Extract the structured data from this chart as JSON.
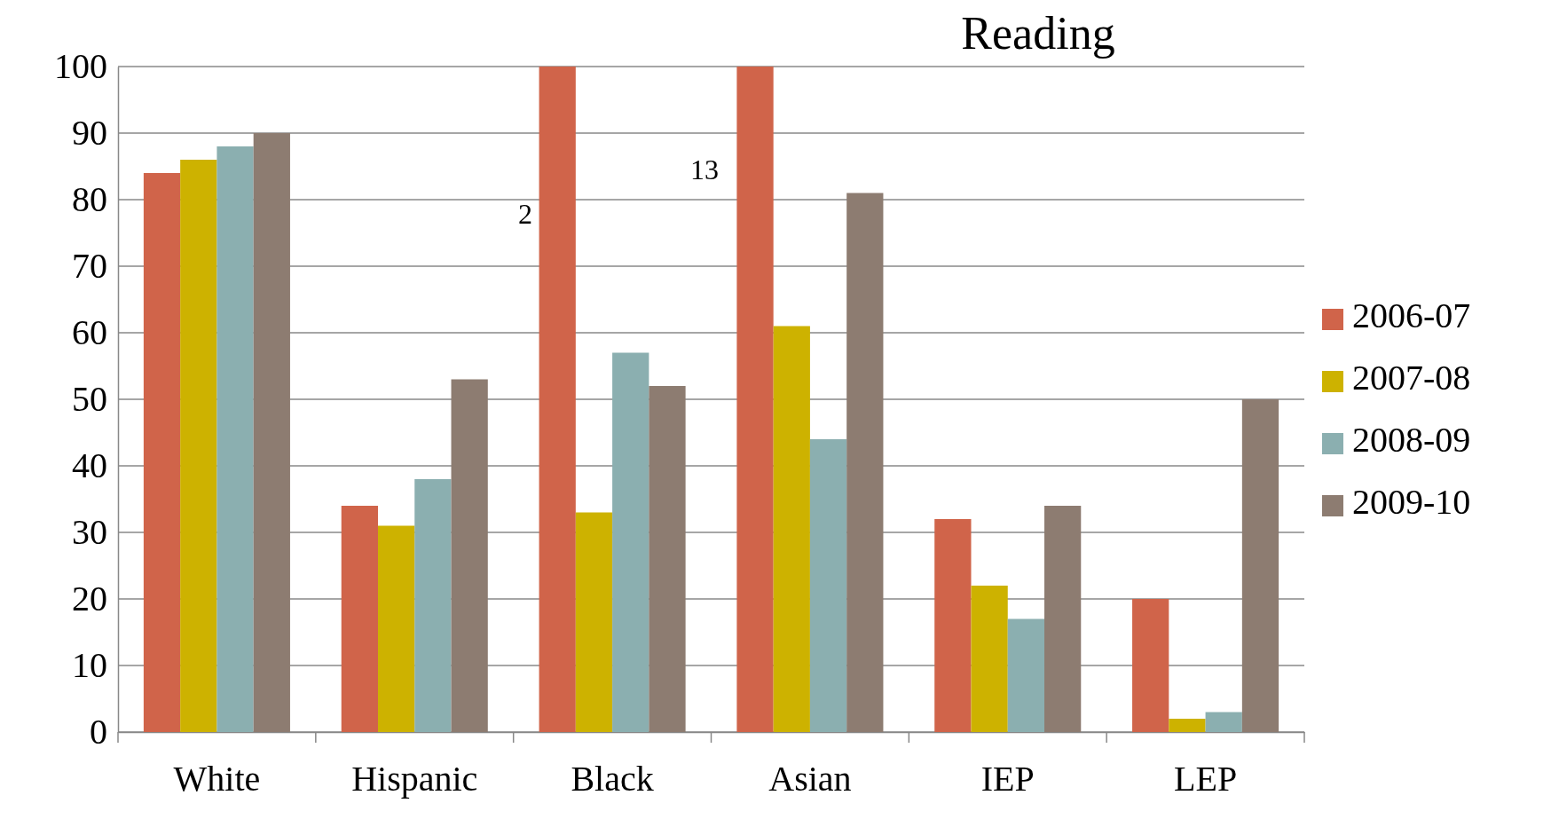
{
  "chart_data": {
    "type": "bar",
    "title": "Reading",
    "categories": [
      "White",
      "Hispanic",
      "Black",
      "Asian",
      "IEP",
      "LEP"
    ],
    "series": [
      {
        "name": "2006-07",
        "color": "#d0644a",
        "values": [
          84,
          34,
          100,
          100,
          32,
          20
        ]
      },
      {
        "name": "2007-08",
        "color": "#cdb200",
        "values": [
          86,
          31,
          33,
          61,
          22,
          2
        ]
      },
      {
        "name": "2008-09",
        "color": "#8bafb0",
        "values": [
          88,
          38,
          57,
          44,
          17,
          3
        ]
      },
      {
        "name": "2009-10",
        "color": "#8d7c71",
        "values": [
          90,
          53,
          52,
          81,
          34,
          50
        ]
      }
    ],
    "ylim": [
      0,
      100
    ],
    "yticks": [
      0,
      10,
      20,
      30,
      40,
      50,
      60,
      70,
      80,
      90,
      100
    ],
    "grid": "y",
    "legend": "right",
    "annotations": [
      "2",
      "13"
    ]
  }
}
